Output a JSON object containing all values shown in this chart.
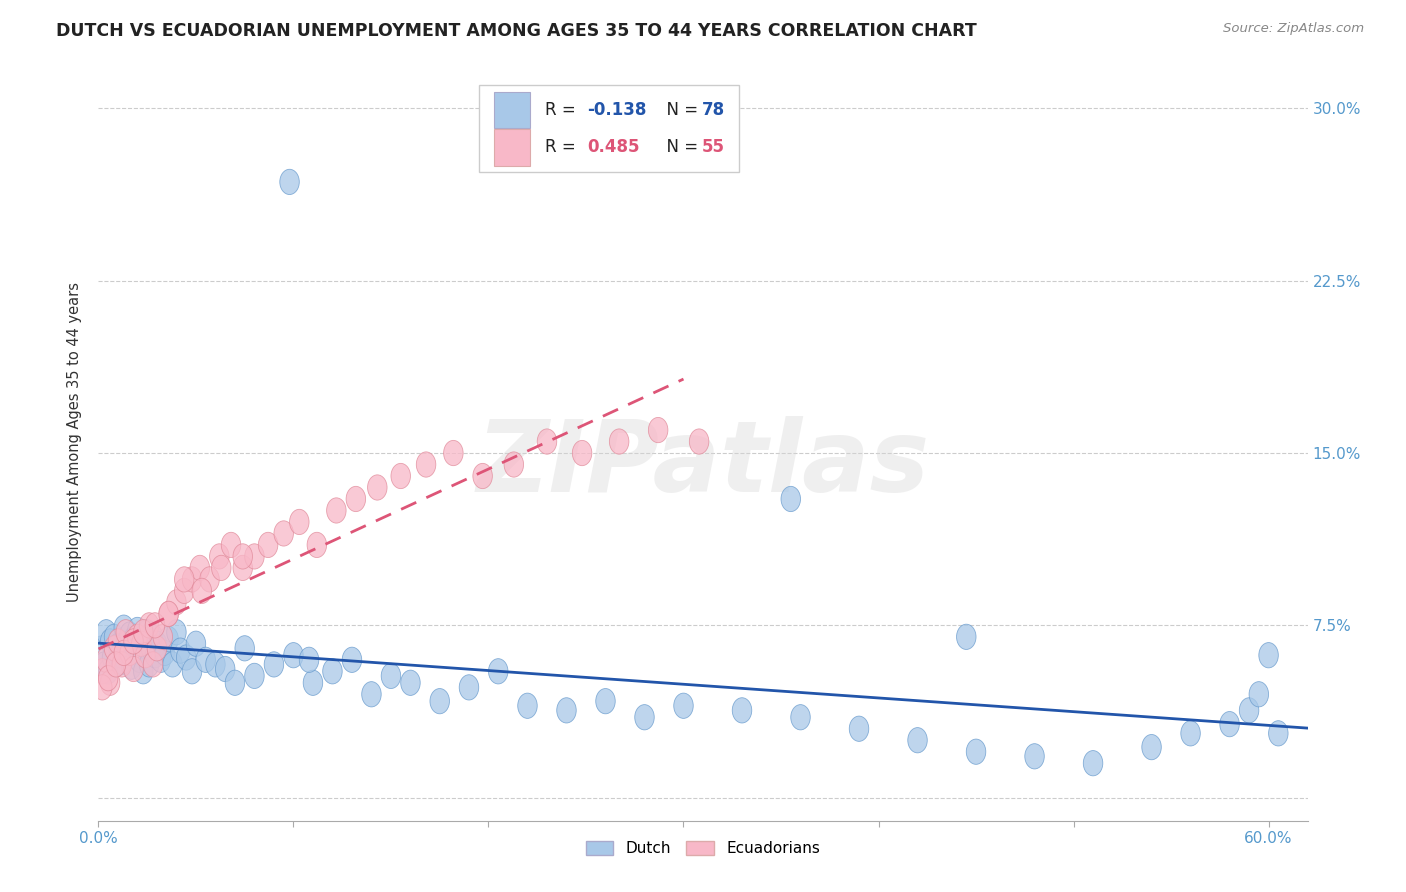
{
  "title": "DUTCH VS ECUADORIAN UNEMPLOYMENT AMONG AGES 35 TO 44 YEARS CORRELATION CHART",
  "source": "Source: ZipAtlas.com",
  "ylabel": "Unemployment Among Ages 35 to 44 years",
  "ytick_values": [
    0.0,
    0.075,
    0.15,
    0.225,
    0.3
  ],
  "ytick_labels": [
    "",
    "7.5%",
    "15.0%",
    "22.5%",
    "30.0%"
  ],
  "xtick_values": [
    0.0,
    0.1,
    0.2,
    0.3,
    0.4,
    0.5,
    0.6
  ],
  "xlim": [
    0.0,
    0.62
  ],
  "ylim": [
    -0.01,
    0.32
  ],
  "dutch_R": -0.138,
  "dutch_N": 78,
  "ecuadorian_R": 0.485,
  "ecuadorian_N": 55,
  "dutch_color": "#a8c8e8",
  "dutch_edge_color": "#6699cc",
  "ecuadorian_color": "#f8b8c8",
  "ecuadorian_edge_color": "#e08898",
  "dutch_line_color": "#2255aa",
  "ecuadorian_line_color": "#dd5577",
  "watermark_color": "#d8d8d8",
  "background_color": "#ffffff",
  "tick_color": "#5599cc",
  "dutch_x": [
    0.002,
    0.003,
    0.004,
    0.005,
    0.006,
    0.007,
    0.008,
    0.009,
    0.01,
    0.011,
    0.012,
    0.013,
    0.014,
    0.015,
    0.016,
    0.017,
    0.018,
    0.019,
    0.02,
    0.021,
    0.022,
    0.023,
    0.024,
    0.025,
    0.026,
    0.027,
    0.028,
    0.029,
    0.03,
    0.032,
    0.034,
    0.036,
    0.038,
    0.04,
    0.042,
    0.045,
    0.048,
    0.05,
    0.055,
    0.06,
    0.065,
    0.07,
    0.075,
    0.08,
    0.09,
    0.1,
    0.11,
    0.12,
    0.13,
    0.14,
    0.15,
    0.16,
    0.175,
    0.19,
    0.205,
    0.22,
    0.24,
    0.26,
    0.28,
    0.3,
    0.33,
    0.36,
    0.39,
    0.42,
    0.45,
    0.48,
    0.51,
    0.54,
    0.56,
    0.58,
    0.59,
    0.595,
    0.6,
    0.605,
    0.355,
    0.445,
    0.098,
    0.108
  ],
  "dutch_y": [
    0.065,
    0.058,
    0.072,
    0.055,
    0.068,
    0.061,
    0.07,
    0.058,
    0.066,
    0.062,
    0.059,
    0.074,
    0.067,
    0.063,
    0.071,
    0.057,
    0.069,
    0.064,
    0.073,
    0.06,
    0.068,
    0.055,
    0.066,
    0.072,
    0.058,
    0.065,
    0.07,
    0.062,
    0.067,
    0.06,
    0.063,
    0.069,
    0.058,
    0.072,
    0.064,
    0.061,
    0.055,
    0.067,
    0.06,
    0.058,
    0.056,
    0.05,
    0.065,
    0.053,
    0.058,
    0.062,
    0.05,
    0.055,
    0.06,
    0.045,
    0.053,
    0.05,
    0.042,
    0.048,
    0.055,
    0.04,
    0.038,
    0.042,
    0.035,
    0.04,
    0.038,
    0.035,
    0.03,
    0.025,
    0.02,
    0.018,
    0.015,
    0.022,
    0.028,
    0.032,
    0.038,
    0.045,
    0.062,
    0.028,
    0.13,
    0.07,
    0.268,
    0.06
  ],
  "ecuadorian_x": [
    0.002,
    0.004,
    0.006,
    0.008,
    0.01,
    0.012,
    0.014,
    0.016,
    0.018,
    0.02,
    0.022,
    0.024,
    0.026,
    0.028,
    0.03,
    0.033,
    0.036,
    0.04,
    0.044,
    0.048,
    0.052,
    0.057,
    0.062,
    0.068,
    0.074,
    0.08,
    0.087,
    0.095,
    0.103,
    0.112,
    0.122,
    0.132,
    0.143,
    0.155,
    0.168,
    0.182,
    0.197,
    0.213,
    0.23,
    0.248,
    0.267,
    0.287,
    0.308,
    0.002,
    0.005,
    0.009,
    0.013,
    0.018,
    0.023,
    0.029,
    0.036,
    0.044,
    0.053,
    0.063,
    0.074
  ],
  "ecuadorian_y": [
    0.055,
    0.06,
    0.05,
    0.065,
    0.068,
    0.058,
    0.072,
    0.063,
    0.056,
    0.07,
    0.067,
    0.062,
    0.075,
    0.058,
    0.065,
    0.07,
    0.08,
    0.085,
    0.09,
    0.095,
    0.1,
    0.095,
    0.105,
    0.11,
    0.1,
    0.105,
    0.11,
    0.115,
    0.12,
    0.11,
    0.125,
    0.13,
    0.135,
    0.14,
    0.145,
    0.15,
    0.14,
    0.145,
    0.155,
    0.15,
    0.155,
    0.16,
    0.155,
    0.048,
    0.052,
    0.058,
    0.063,
    0.068,
    0.072,
    0.075,
    0.08,
    0.095,
    0.09,
    0.1,
    0.105
  ],
  "legend_R_dutch_color": "#2255aa",
  "legend_R_ecu_color": "#dd5577",
  "legend_N_dutch_color": "#2255aa",
  "legend_N_ecu_color": "#dd5577"
}
